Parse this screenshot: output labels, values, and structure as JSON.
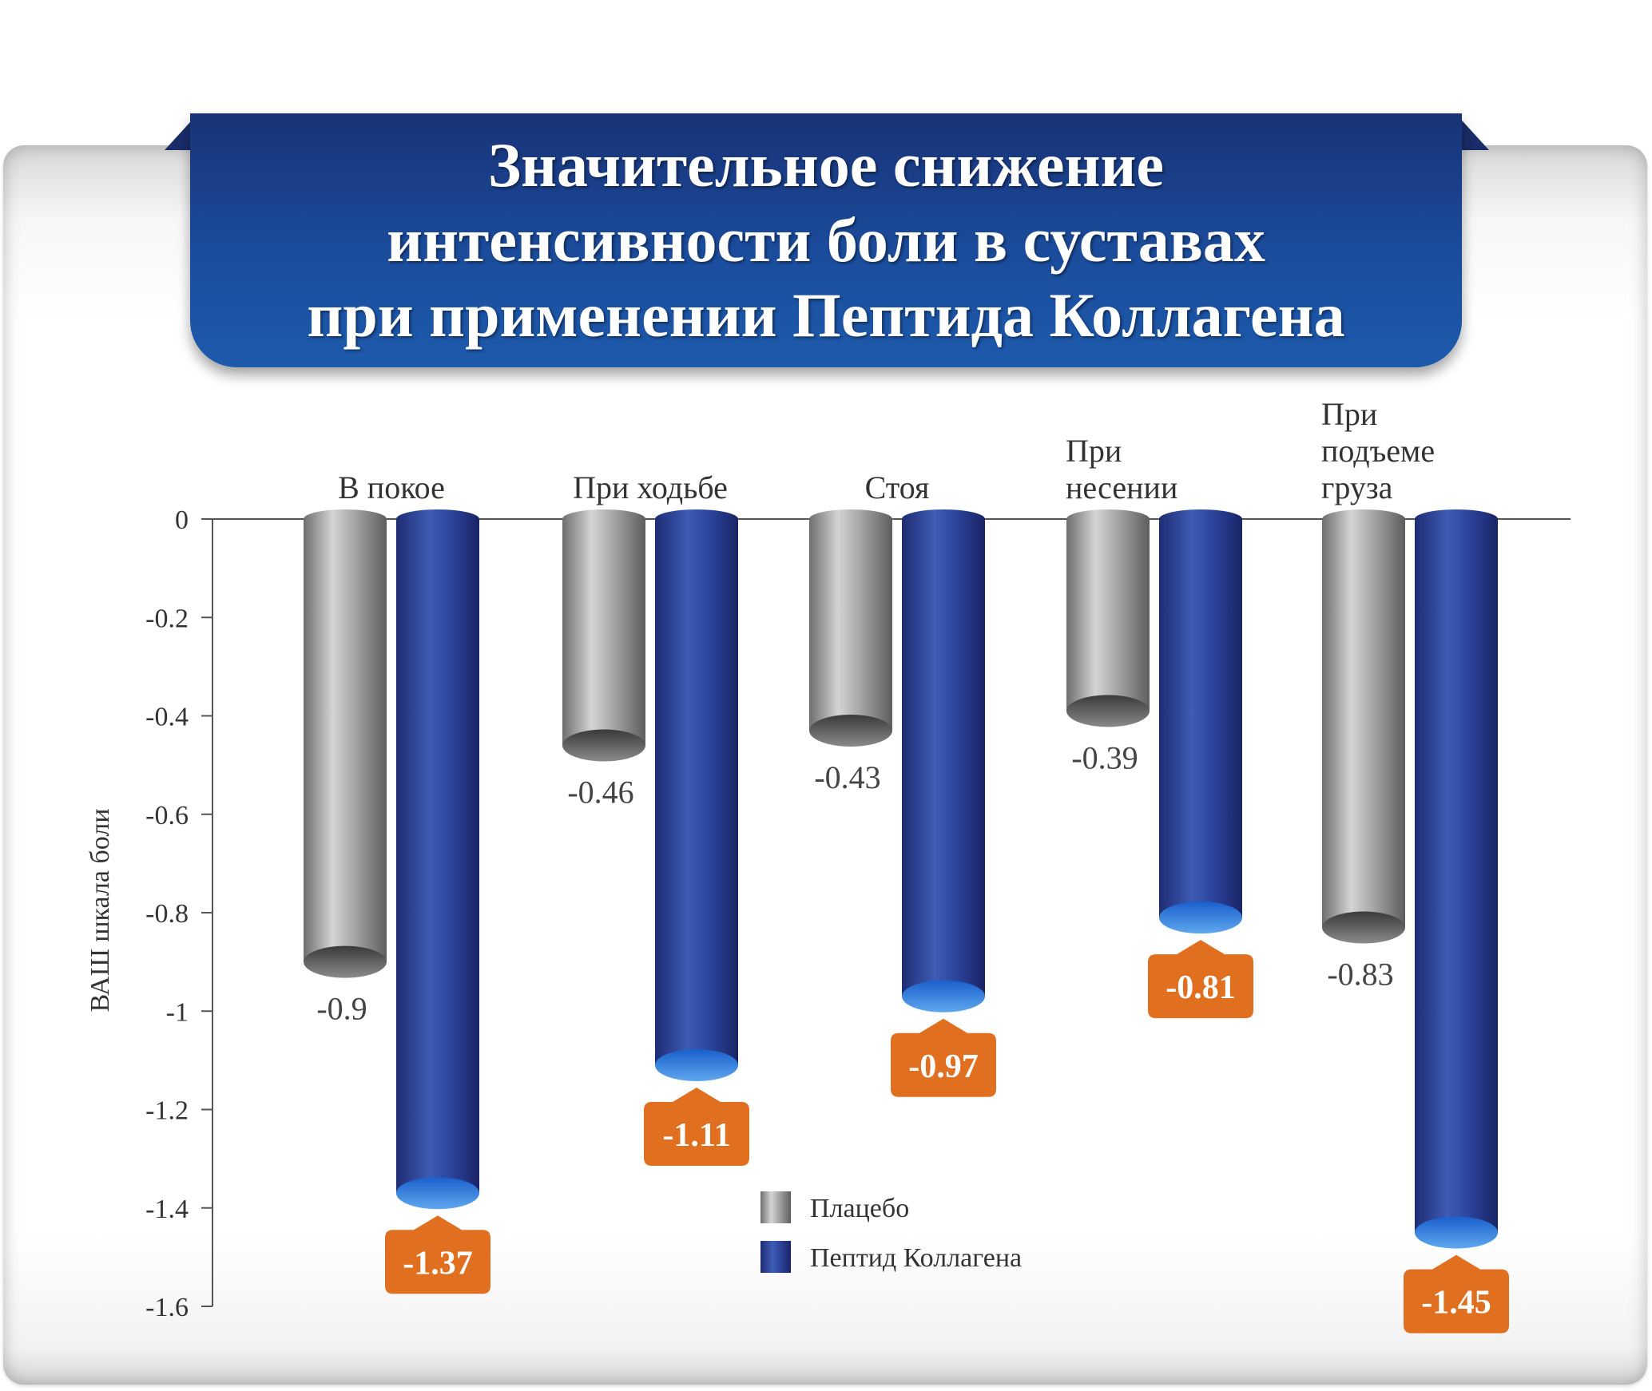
{
  "title": "Значительное снижение\nинтенсивности боли в суставах\nпри применении Пептида Коллагена",
  "colors": {
    "placebo": "#9a9a9a",
    "peptide": "#2a3f96",
    "badge": "#e07020",
    "title_bg": "#1b4c9c"
  },
  "chart_data": {
    "type": "bar",
    "ylabel": "ВАШ шкала боли",
    "ylim": [
      -1.6,
      0
    ],
    "yticks": [
      "0",
      "-0.2",
      "-0.4",
      "-0.6",
      "-0.8",
      "-1",
      "-1.2",
      "-1.4",
      "-1.6"
    ],
    "categories": [
      [
        "В покое"
      ],
      [
        "При ходьбе"
      ],
      [
        "Стоя"
      ],
      [
        "При",
        "несении"
      ],
      [
        "При",
        "подъеме",
        "груза"
      ]
    ],
    "series": [
      {
        "name": "Плацебо",
        "values": [
          -0.9,
          -0.46,
          -0.43,
          -0.39,
          -0.83
        ],
        "labels": [
          "-0.9",
          "-0.46",
          "-0.43",
          "-0.39",
          "-0.83"
        ]
      },
      {
        "name": "Пептид Коллагена",
        "values": [
          -1.37,
          -1.11,
          -0.97,
          -0.81,
          -1.45
        ],
        "labels": [
          "-1.37",
          "-1.11",
          "-0.97",
          "-0.81",
          "-1.45"
        ]
      }
    ],
    "legend_position": "bottom-center"
  }
}
